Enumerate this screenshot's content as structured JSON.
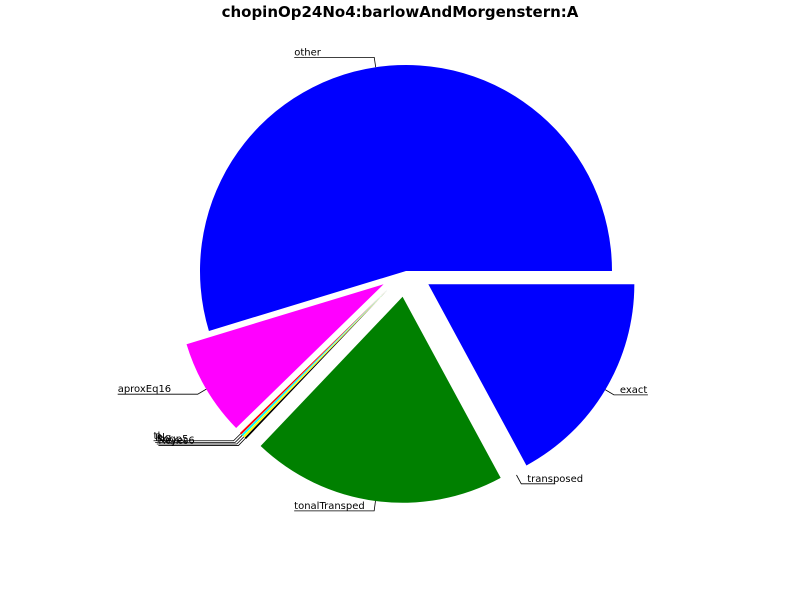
{
  "chart_data": {
    "type": "pie",
    "title": "chopinOp24No4:barlowAndMorgenstern:A",
    "slices": [
      {
        "label": "other",
        "value": 54.7,
        "color": "#0000ff",
        "explode": 0
      },
      {
        "label": "aproxEq16",
        "value": 7.6,
        "color": "#ff00ff",
        "explode": 1
      },
      {
        "label": "tl",
        "value": 0.15,
        "color": "#ff0000",
        "explode": 1
      },
      {
        "label": "Rlg",
        "value": 0.15,
        "color": "#00ffff",
        "explode": 1
      },
      {
        "label": "Rogp5",
        "value": 0.15,
        "color": "#ffff00",
        "explode": 1
      },
      {
        "label": "Reyes6",
        "value": 0.15,
        "color": "#000000",
        "explode": 1
      },
      {
        "label": "tonalTransped",
        "value": 20.0,
        "color": "#008000",
        "explode": 1
      },
      {
        "label": "transposed",
        "value": 0.0,
        "color": "#ff0000",
        "explode": 1
      },
      {
        "label": "exact",
        "value": 17.1,
        "color": "#0000ff",
        "explode": 1
      }
    ]
  }
}
